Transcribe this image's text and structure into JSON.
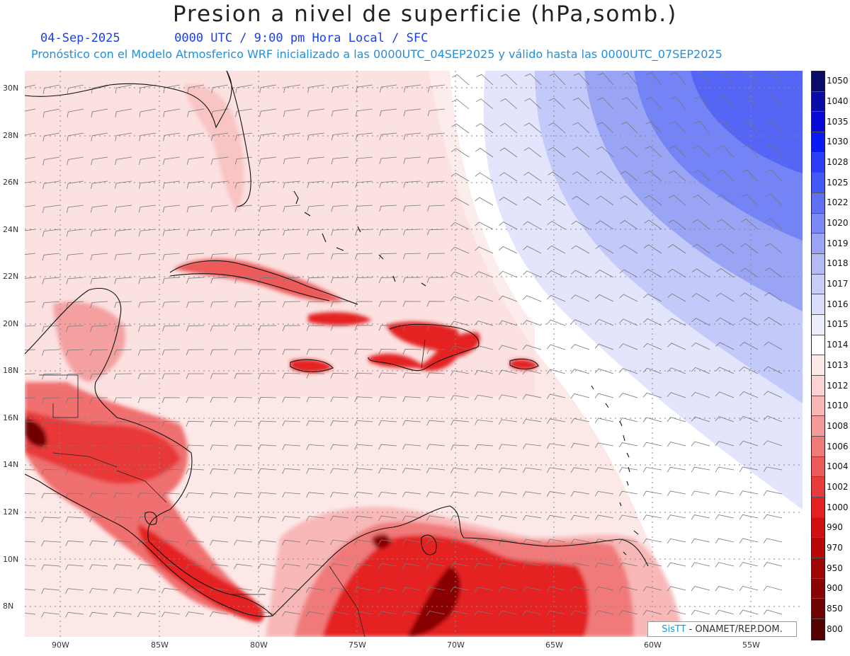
{
  "title": "Presion a nivel de superficie (hPa,somb.)",
  "header": {
    "date": "04-Sep-2025",
    "time_info": "0000 UTC / 9:00 pm Hora Local / SFC",
    "forecast_info": "Pronóstico con el Modelo Atmosferico WRF inicializado a las 0000UTC_04SEP2025 y válido hasta las  0000UTC_07SEP2025"
  },
  "axes": {
    "lat_labels": [
      "30N",
      "28N",
      "26N",
      "24N",
      "22N",
      "20N",
      "18N",
      "16N",
      "14N",
      "12N",
      "10N",
      "8N"
    ],
    "lon_labels": [
      "90W",
      "85W",
      "80W",
      "75W",
      "70W",
      "65W",
      "60W",
      "55W"
    ]
  },
  "colorbar": {
    "levels": [
      "1050",
      "1040",
      "1035",
      "1030",
      "1028",
      "1025",
      "1022",
      "1020",
      "1019",
      "1018",
      "1017",
      "1016",
      "1015",
      "1014",
      "1013",
      "1012",
      "1010",
      "1008",
      "1006",
      "1004",
      "1002",
      "1000",
      "990",
      "970",
      "950",
      "900",
      "850",
      "800"
    ],
    "colors": [
      "#0a0a6a",
      "#0b0ba8",
      "#0808d8",
      "#0a1af5",
      "#2a3df8",
      "#4458f8",
      "#5f70f6",
      "#7c89f4",
      "#9aa3f5",
      "#b3baf6",
      "#c8cdf8",
      "#dadefa",
      "#eceefc",
      "#ffffff",
      "#fde8e8",
      "#fbd3d3",
      "#f8b8b8",
      "#f49a9a",
      "#f07a7a",
      "#ec5a5a",
      "#e83a3a",
      "#e42020",
      "#d01010",
      "#b80808",
      "#a00505",
      "#880303",
      "#700202",
      "#560101"
    ]
  },
  "credit": {
    "sis": "SisTT",
    "org": "- ONAMET/REP.DOM."
  }
}
